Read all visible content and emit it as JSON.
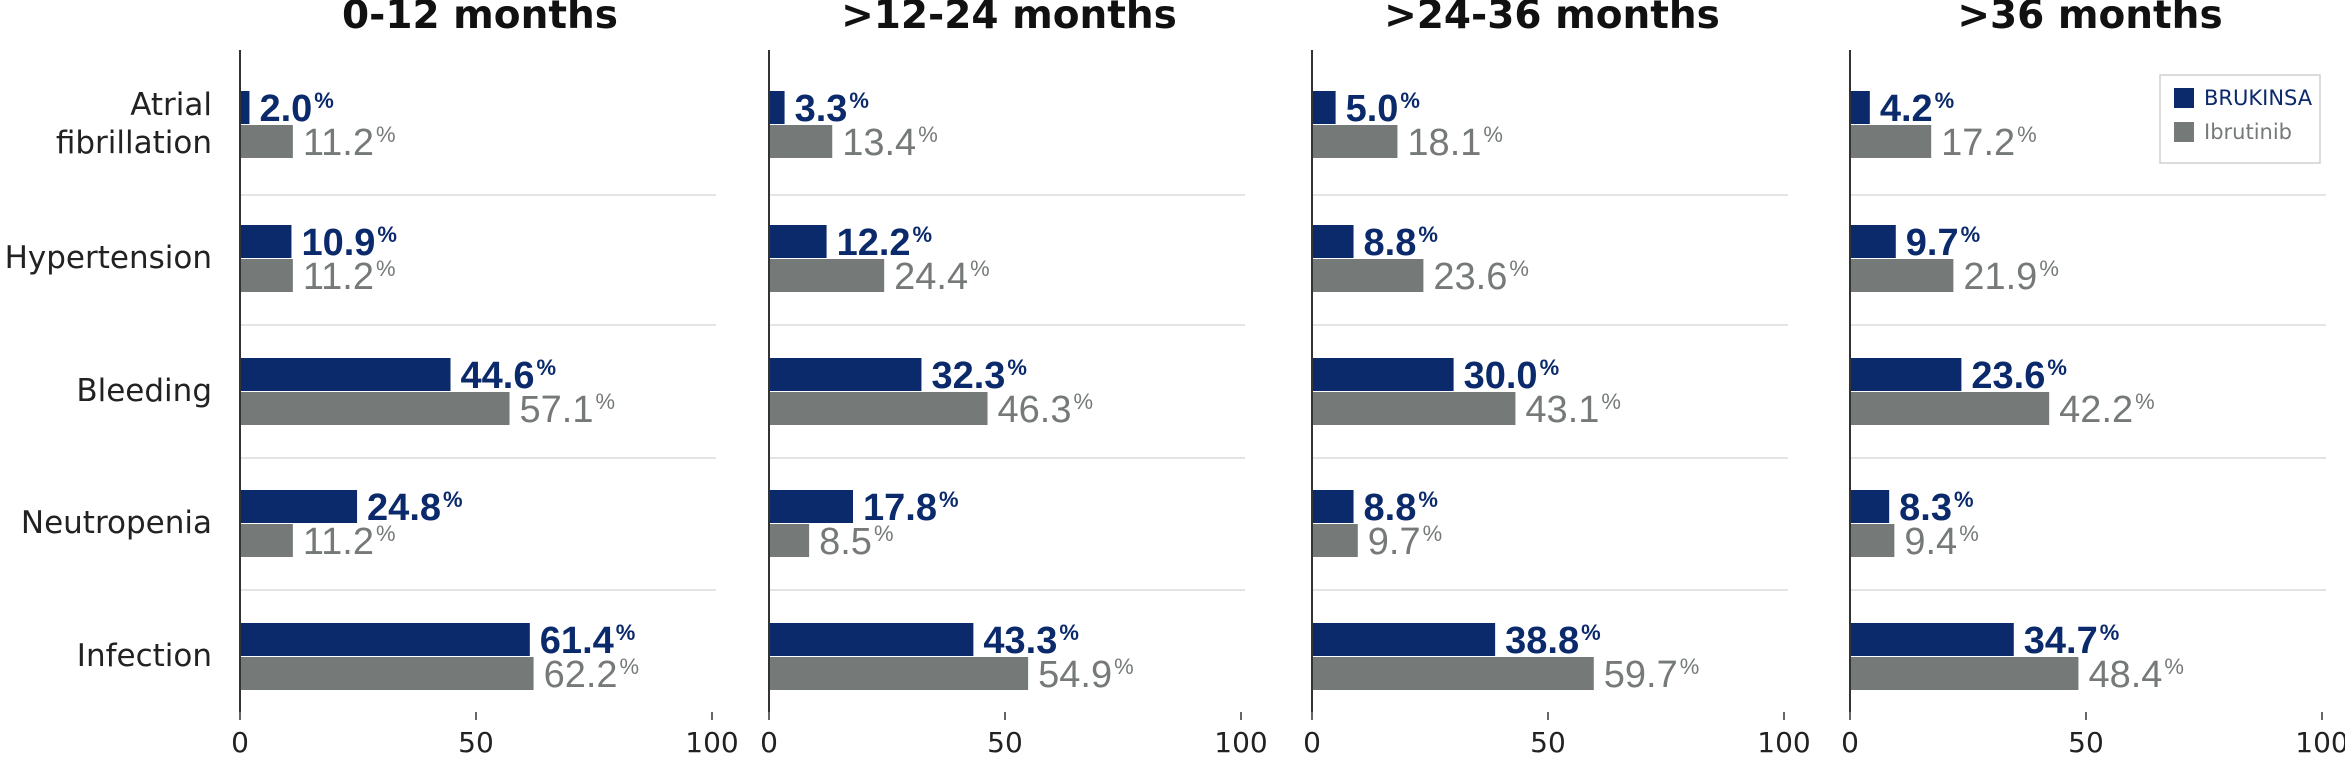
{
  "chart_data": {
    "type": "bar",
    "orientation": "horizontal",
    "categories": [
      "Atrial\nfibrillation",
      "Hypertension",
      "Bleeding",
      "Neutropenia",
      "Infection"
    ],
    "xlim": [
      0,
      100
    ],
    "xticks": [
      0,
      50,
      100
    ],
    "value_suffix": "%",
    "colors": {
      "BRUKINSA": "#0b2a6b",
      "Ibrutinib": "#757a79"
    },
    "legend": {
      "placement": "top-right",
      "entries": [
        "BRUKINSA",
        "Ibrutinib"
      ]
    },
    "panels": [
      {
        "title": "0-12 months",
        "series": [
          {
            "name": "BRUKINSA",
            "values": [
              2.0,
              10.9,
              44.6,
              24.8,
              61.4
            ]
          },
          {
            "name": "Ibrutinib",
            "values": [
              11.2,
              11.2,
              57.1,
              11.2,
              62.2
            ]
          }
        ]
      },
      {
        "title": ">12-24 months",
        "series": [
          {
            "name": "BRUKINSA",
            "values": [
              3.3,
              12.2,
              32.3,
              17.8,
              43.3
            ]
          },
          {
            "name": "Ibrutinib",
            "values": [
              13.4,
              24.4,
              46.3,
              8.5,
              54.9
            ]
          }
        ]
      },
      {
        "title": ">24-36 months",
        "series": [
          {
            "name": "BRUKINSA",
            "values": [
              5.0,
              8.8,
              30.0,
              8.8,
              38.8
            ]
          },
          {
            "name": "Ibrutinib",
            "values": [
              18.1,
              23.6,
              43.1,
              9.7,
              59.7
            ]
          }
        ]
      },
      {
        "title": ">36 months",
        "series": [
          {
            "name": "BRUKINSA",
            "values": [
              4.2,
              9.7,
              23.6,
              8.3,
              34.7
            ]
          },
          {
            "name": "Ibrutinib",
            "values": [
              17.2,
              21.9,
              42.2,
              9.4,
              48.4
            ]
          }
        ]
      }
    ]
  }
}
